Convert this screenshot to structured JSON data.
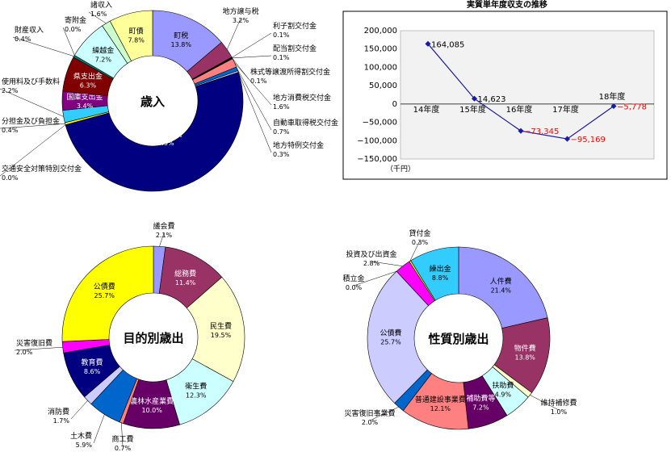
{
  "chart_data": [
    {
      "type": "pie",
      "title": "歳入",
      "slices": [
        {
          "label": "町税",
          "value": 13.8,
          "color": "#9999ff"
        },
        {
          "label": "地方譲与税",
          "value": 3.2,
          "color": "#993366"
        },
        {
          "label": "利子割交付金",
          "value": 0.1,
          "color": "#ffffcc"
        },
        {
          "label": "配当割交付金",
          "value": 0.1,
          "color": "#ccffff"
        },
        {
          "label": "株式等譲渡所得割交付金",
          "value": 0.1,
          "color": "#660066"
        },
        {
          "label": "地方消費税交付金",
          "value": 1.6,
          "color": "#ff8080"
        },
        {
          "label": "自動車取得税交付金",
          "value": 0.7,
          "color": "#0066cc"
        },
        {
          "label": "地方特例交付金",
          "value": 0.3,
          "color": "#ccccff"
        },
        {
          "label": "地方交付税",
          "value": 50.9,
          "color": "#000080"
        },
        {
          "label": "交通安全対策特別交付金",
          "value": 0.0,
          "color": "#ff00ff"
        },
        {
          "label": "分担金及び負担金",
          "value": 0.4,
          "color": "#ffff00"
        },
        {
          "label": "使用料及び手数料",
          "value": 2.2,
          "color": "#33ccff"
        },
        {
          "label": "国庫支出金",
          "value": 3.4,
          "color": "#800080"
        },
        {
          "label": "県支出金",
          "value": 6.3,
          "color": "#800000"
        },
        {
          "label": "財産収入",
          "value": 0.4,
          "color": "#008080"
        },
        {
          "label": "寄附金",
          "value": 0.0,
          "color": "#0000ff"
        },
        {
          "label": "繰越金",
          "value": 7.2,
          "color": "#ccffff"
        },
        {
          "label": "諸収入",
          "value": 1.6,
          "color": "#ccffcc"
        },
        {
          "label": "町債",
          "value": 7.8,
          "color": "#ffff99"
        }
      ]
    },
    {
      "type": "line",
      "title": "実質単年度収支の推移",
      "unit_label": "（千円）",
      "categories": [
        "14年度",
        "15年度",
        "16年度",
        "17年度",
        "18年度"
      ],
      "values": [
        164085,
        14623,
        -73345,
        -95169,
        -5778
      ],
      "data_labels": [
        "164,085",
        "14,623",
        "−73,345",
        "−95,169",
        "−5,778"
      ],
      "ylim": [
        -150000,
        200000
      ],
      "yticks": [
        "200,000",
        "150,000",
        "100,000",
        "50,000",
        "0",
        "−50,000",
        "−100,000",
        "−150,000"
      ],
      "line_color": "#1a1aa6",
      "negative_label_color": "#ff0000",
      "plot_background": "#f2f2f2"
    },
    {
      "type": "pie",
      "title": "目的別歳出",
      "slices": [
        {
          "label": "議会費",
          "value": 2.1,
          "color": "#9999ff"
        },
        {
          "label": "総務費",
          "value": 11.4,
          "color": "#993366"
        },
        {
          "label": "民生費",
          "value": 19.5,
          "color": "#ffffcc"
        },
        {
          "label": "衛生費",
          "value": 12.3,
          "color": "#ccffff"
        },
        {
          "label": "農林水産業費",
          "value": 10.0,
          "color": "#660066"
        },
        {
          "label": "商工費",
          "value": 0.7,
          "color": "#ff8080"
        },
        {
          "label": "土木費",
          "value": 5.9,
          "color": "#0066cc"
        },
        {
          "label": "消防費",
          "value": 1.7,
          "color": "#ccccff"
        },
        {
          "label": "教育費",
          "value": 8.6,
          "color": "#000080"
        },
        {
          "label": "災害復旧費",
          "value": 2.0,
          "color": "#ff00ff"
        },
        {
          "label": "公債費",
          "value": 25.7,
          "color": "#ffff00"
        }
      ]
    },
    {
      "type": "pie",
      "title": "性質別歳出",
      "slices": [
        {
          "label": "人件費",
          "value": 21.4,
          "color": "#9999ff"
        },
        {
          "label": "物件費",
          "value": 13.8,
          "color": "#993366"
        },
        {
          "label": "維持補修費",
          "value": 1.0,
          "color": "#ffffcc"
        },
        {
          "label": "扶助費",
          "value": 4.9,
          "color": "#ccffff"
        },
        {
          "label": "補助費等",
          "value": 7.2,
          "color": "#660066"
        },
        {
          "label": "普通建設事業費",
          "value": 12.1,
          "color": "#ff8080"
        },
        {
          "label": "災害復旧事業費",
          "value": 2.0,
          "color": "#0066cc"
        },
        {
          "label": "公債費",
          "value": 25.7,
          "color": "#ccccff"
        },
        {
          "label": "積立金",
          "value": 0.0,
          "color": "#000080"
        },
        {
          "label": "投資及び出資金",
          "value": 2.8,
          "color": "#ff00ff"
        },
        {
          "label": "貸付金",
          "value": 0.3,
          "color": "#ffff00"
        },
        {
          "label": "繰出金",
          "value": 8.8,
          "color": "#33ccff"
        }
      ]
    }
  ]
}
